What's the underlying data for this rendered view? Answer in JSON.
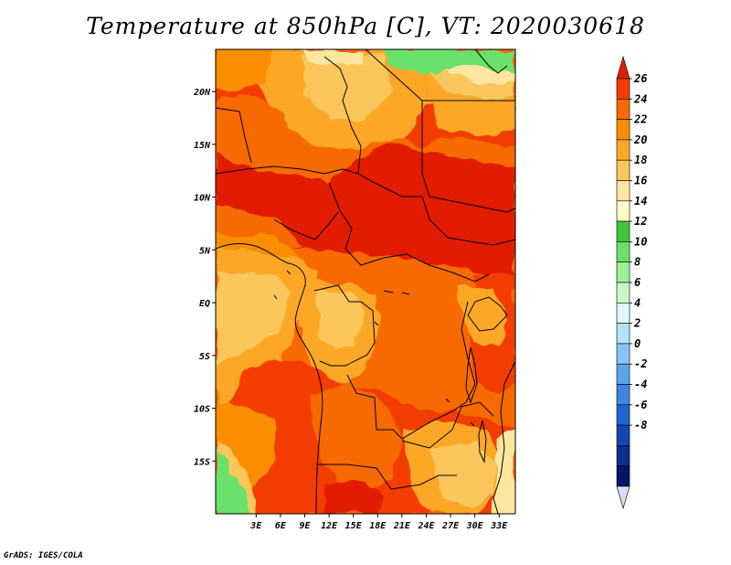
{
  "title": "Temperature at 850hPa [C], VT: 2020030618",
  "credit": "GrADS: IGES/COLA",
  "map": {
    "lon_range": [
      -2,
      35
    ],
    "lat_range": [
      -20,
      24
    ],
    "lon_ticks": [
      {
        "value": 3,
        "label": "3E"
      },
      {
        "value": 6,
        "label": "6E"
      },
      {
        "value": 9,
        "label": "9E"
      },
      {
        "value": 12,
        "label": "12E"
      },
      {
        "value": 15,
        "label": "15E"
      },
      {
        "value": 18,
        "label": "18E"
      },
      {
        "value": 21,
        "label": "21E"
      },
      {
        "value": 24,
        "label": "24E"
      },
      {
        "value": 27,
        "label": "27E"
      },
      {
        "value": 30,
        "label": "30E"
      },
      {
        "value": 33,
        "label": "33E"
      }
    ],
    "lat_ticks": [
      {
        "value": 20,
        "label": "20N"
      },
      {
        "value": 15,
        "label": "15N"
      },
      {
        "value": 10,
        "label": "10N"
      },
      {
        "value": 5,
        "label": "5N"
      },
      {
        "value": 0,
        "label": "EQ"
      },
      {
        "value": -5,
        "label": "5S"
      },
      {
        "value": -10,
        "label": "10S"
      },
      {
        "value": -15,
        "label": "15S"
      }
    ]
  },
  "colorbar": {
    "labels": [
      "26",
      "24",
      "22",
      "20",
      "18",
      "16",
      "14",
      "12",
      "10",
      "8",
      "6",
      "4",
      "2",
      "0",
      "-2",
      "-4",
      "-6",
      "-8"
    ],
    "colors": [
      "#e11f00",
      "#f33c00",
      "#f76a00",
      "#fb8e00",
      "#fca826",
      "#fbc65b",
      "#fde7a0",
      "#fff8c8",
      "#41c83a",
      "#6be16a",
      "#9bf091",
      "#c7f9c2",
      "#e0f8fa",
      "#b4e1fa",
      "#8ac3f6",
      "#5da4ee",
      "#3d86e4",
      "#1f62d1",
      "#1048b3",
      "#0a2e8c",
      "#04166a",
      "#dcdcf8"
    ]
  }
}
